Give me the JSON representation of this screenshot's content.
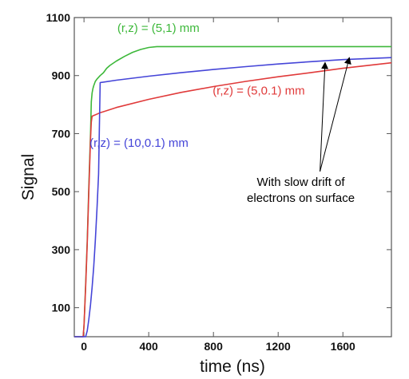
{
  "chart_data": {
    "type": "line",
    "xlabel": "time (ns)",
    "ylabel": "Signal",
    "xlim": [
      -60,
      1900
    ],
    "ylim": [
      0,
      1100
    ],
    "x_ticks": [
      0,
      400,
      800,
      1200,
      1600
    ],
    "y_ticks": [
      100,
      300,
      500,
      700,
      900,
      1100
    ],
    "x_tick_labels": [
      "0",
      "400",
      "800",
      "1200",
      "1600"
    ],
    "y_tick_labels": [
      "100",
      "300",
      "500",
      "700",
      "900",
      "1100"
    ],
    "grid": false,
    "series": [
      {
        "name": "(r,z) = (5,1) mm",
        "color": "#3db83a",
        "x": [
          -60,
          -5,
          0,
          10,
          20,
          30,
          40,
          45,
          50,
          55,
          60,
          70,
          80,
          100,
          120,
          140,
          160,
          200,
          250,
          300,
          350,
          400,
          450,
          480,
          1900
        ],
        "y": [
          0,
          0,
          40,
          180,
          330,
          520,
          700,
          810,
          840,
          855,
          865,
          880,
          888,
          900,
          910,
          925,
          935,
          950,
          966,
          980,
          990,
          997,
          1000,
          1000,
          1000
        ]
      },
      {
        "name": "(r,z) = (5,0.1) mm",
        "color": "#e03a3a",
        "x": [
          -60,
          -5,
          0,
          10,
          20,
          30,
          40,
          45,
          50,
          100,
          200,
          400,
          600,
          800,
          1000,
          1200,
          1400,
          1600,
          1900
        ],
        "y": [
          0,
          0,
          40,
          170,
          320,
          500,
          680,
          740,
          760,
          772,
          790,
          818,
          842,
          862,
          880,
          896,
          910,
          925,
          944
        ]
      },
      {
        "name": "(r,z) = (10,0.1) mm",
        "color": "#4545d8",
        "x": [
          -60,
          10,
          20,
          30,
          40,
          50,
          60,
          70,
          80,
          90,
          95,
          100,
          200,
          400,
          600,
          800,
          1000,
          1200,
          1400,
          1600,
          1900
        ],
        "y": [
          0,
          0,
          20,
          60,
          110,
          170,
          240,
          330,
          440,
          560,
          720,
          876,
          884,
          898,
          910,
          921,
          931,
          940,
          948,
          955,
          962
        ]
      }
    ],
    "annotations": [
      {
        "text": "(r,z) = (5,1) mm",
        "color": "#3db83a",
        "x": 460,
        "y": 1050
      },
      {
        "text": "(r,z) = (5,0.1) mm",
        "color": "#e03a3a",
        "x": 1080,
        "y": 835
      },
      {
        "text": "(r,z) = (10,0.1) mm",
        "color": "#4545d8",
        "x": 340,
        "y": 655
      },
      {
        "lines": [
          "With slow drift of",
          "electrons on surface"
        ],
        "color": "#000000",
        "x": 1340,
        "y": 520,
        "arrows_to": [
          [
            1490,
            945
          ],
          [
            1640,
            962
          ]
        ]
      }
    ]
  }
}
